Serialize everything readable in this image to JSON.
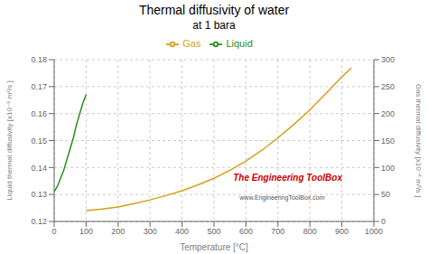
{
  "chart_data": {
    "type": "line",
    "title": "Thermal diffusivity of water",
    "subtitle": "at 1 bara",
    "x_label": "Temperature  [°C]",
    "y_label": "Liquid thermal diffusivity  [x10⁻⁶ m²/s ]",
    "y2_label": "Gas thermal diffusivity  [x10⁻⁶ m²/s ]",
    "xlim": [
      0,
      1000
    ],
    "xticks": [
      0,
      100,
      200,
      300,
      400,
      500,
      600,
      700,
      800,
      900,
      1000
    ],
    "ylim": [
      0.12,
      0.18
    ],
    "yticks": [
      0.12,
      0.13,
      0.14,
      0.15,
      0.16,
      0.17,
      0.18
    ],
    "y2lim": [
      0,
      300
    ],
    "y2ticks": [
      0,
      50,
      100,
      150,
      200,
      250,
      300
    ],
    "grid": true,
    "legend": "top",
    "series": [
      {
        "name": "Liquid",
        "color": "#2a8c1e",
        "x": [
          0,
          10,
          20,
          30,
          40,
          50,
          60,
          70,
          80,
          90,
          100
        ],
        "values": [
          0.131,
          0.133,
          0.136,
          0.139,
          0.143,
          0.147,
          0.151,
          0.156,
          0.16,
          0.164,
          0.167
        ]
      },
      {
        "name": "Gas",
        "color": "#d4a017",
        "axis": "y2",
        "x": [
          100,
          150,
          200,
          250,
          300,
          350,
          400,
          450,
          500,
          550,
          600,
          650,
          700,
          750,
          800,
          850,
          900,
          930
        ],
        "values": [
          20,
          23,
          27,
          33,
          40,
          48,
          57,
          68,
          80,
          95,
          112,
          132,
          155,
          180,
          207,
          237,
          268,
          285
        ]
      }
    ],
    "annotations": [
      {
        "text": "The Engineering ToolBox",
        "color": "#cc0000"
      },
      {
        "text": "www.EngineeringToolBox.com",
        "color": "#555555"
      }
    ]
  }
}
